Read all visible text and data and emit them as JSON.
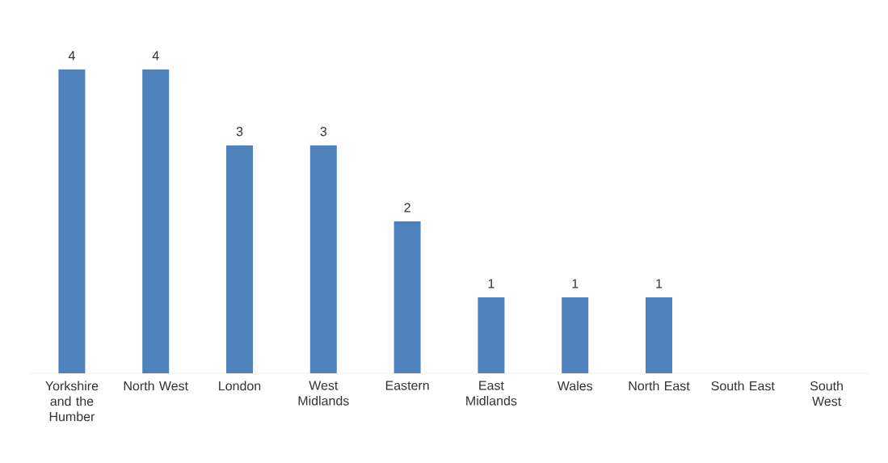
{
  "chart_data": {
    "type": "bar",
    "categories": [
      "Yorkshire and the Humber",
      "North West",
      "London",
      "West Midlands",
      "Eastern",
      "East Midlands",
      "Wales",
      "North East",
      "South East",
      "South West"
    ],
    "values": [
      4,
      4,
      3,
      3,
      2,
      1,
      1,
      1,
      0,
      0
    ],
    "value_labels": [
      "4",
      "4",
      "3",
      "3",
      "2",
      "1",
      "1",
      "1",
      null,
      null
    ],
    "color": "#4f81bd"
  }
}
